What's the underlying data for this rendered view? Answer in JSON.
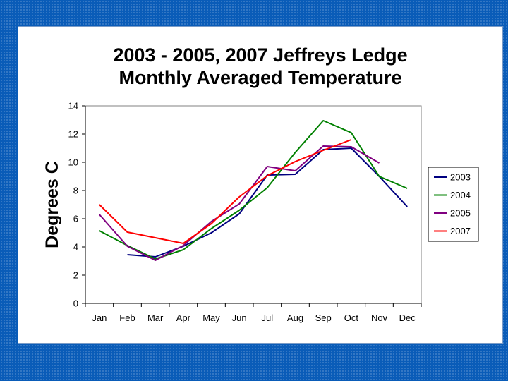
{
  "chart_data": {
    "type": "line",
    "title": "2003 - 2005, 2007 Jeffreys Ledge",
    "subtitle": "Monthly Averaged Temperature",
    "xlabel": "",
    "ylabel": "Degrees C",
    "categories": [
      "Jan",
      "Feb",
      "Mar",
      "Apr",
      "May",
      "Jun",
      "Jul",
      "Aug",
      "Sep",
      "Oct",
      "Nov",
      "Dec"
    ],
    "ylim": [
      0,
      14
    ],
    "yticks": [
      "0",
      "2",
      "4",
      "6",
      "8",
      "10",
      "12",
      "14"
    ],
    "grid": false,
    "legend": "right",
    "series": [
      {
        "name": "2003",
        "color": "#000080",
        "values": [
          null,
          3.45,
          3.3,
          4.05,
          5.0,
          6.35,
          9.1,
          9.15,
          10.9,
          11.0,
          9.0,
          6.85
        ]
      },
      {
        "name": "2004",
        "color": "#008000",
        "values": [
          5.15,
          4.1,
          3.15,
          3.8,
          5.3,
          6.6,
          8.2,
          10.7,
          12.95,
          12.1,
          9.0,
          8.15
        ]
      },
      {
        "name": "2005",
        "color": "#800080",
        "values": [
          6.3,
          4.05,
          3.05,
          4.1,
          5.8,
          7.05,
          9.7,
          9.4,
          11.15,
          11.1,
          9.95,
          null
        ]
      },
      {
        "name": "2007",
        "color": "#ff0000",
        "values": [
          7.0,
          5.05,
          4.65,
          4.25,
          5.65,
          7.55,
          9.05,
          10.05,
          10.85,
          11.6,
          null,
          null
        ]
      }
    ]
  }
}
